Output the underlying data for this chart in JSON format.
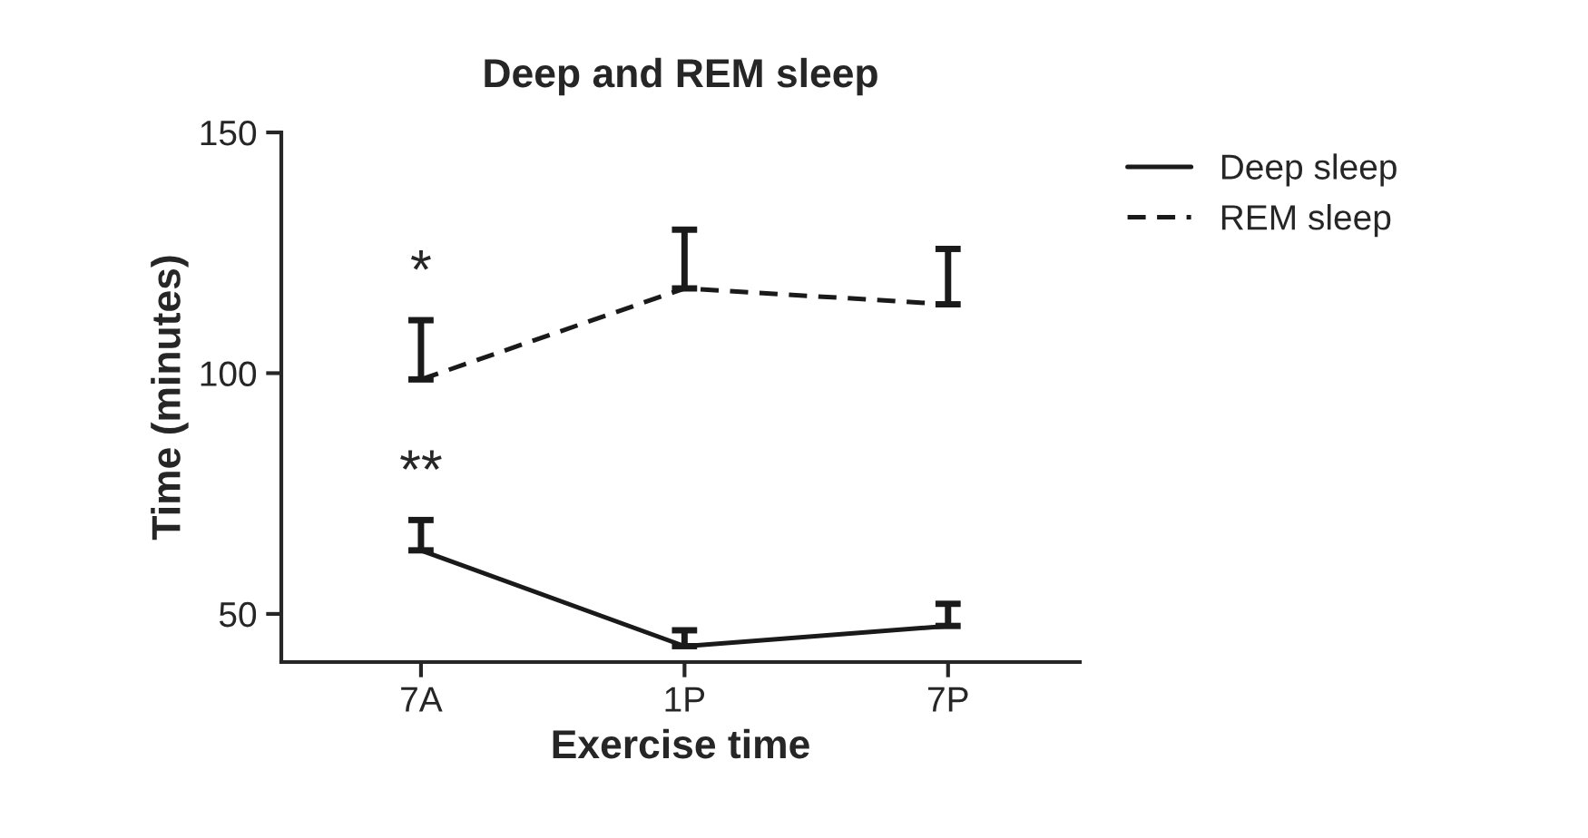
{
  "chart_data": {
    "type": "line",
    "title": "Deep and REM sleep",
    "xlabel": "Exercise time",
    "ylabel": "Time (minutes)",
    "categories": [
      "7A",
      "1P",
      "7P"
    ],
    "series": [
      {
        "name": "Deep sleep",
        "color": "#1a1a1a",
        "line_style": "solid",
        "values": [
          63.2,
          43.3,
          47.5
        ],
        "errors": [
          [
            63.2,
            69.5
          ],
          [
            43.3,
            46.6
          ],
          [
            47.5,
            52.1
          ]
        ]
      },
      {
        "name": "REM sleep",
        "color": "#1a1a1a",
        "line_style": "dashed",
        "values": [
          98.7,
          117.6,
          114.3
        ],
        "errors": [
          [
            98.7,
            111
          ],
          [
            117.6,
            129.8
          ],
          [
            114.3,
            125.8
          ]
        ]
      }
    ],
    "ylim": [
      40,
      150
    ],
    "yticks": [
      50,
      100,
      150
    ],
    "grid": false,
    "legend": "top right",
    "marker": "none",
    "annotations": [
      "*",
      "**"
    ]
  }
}
